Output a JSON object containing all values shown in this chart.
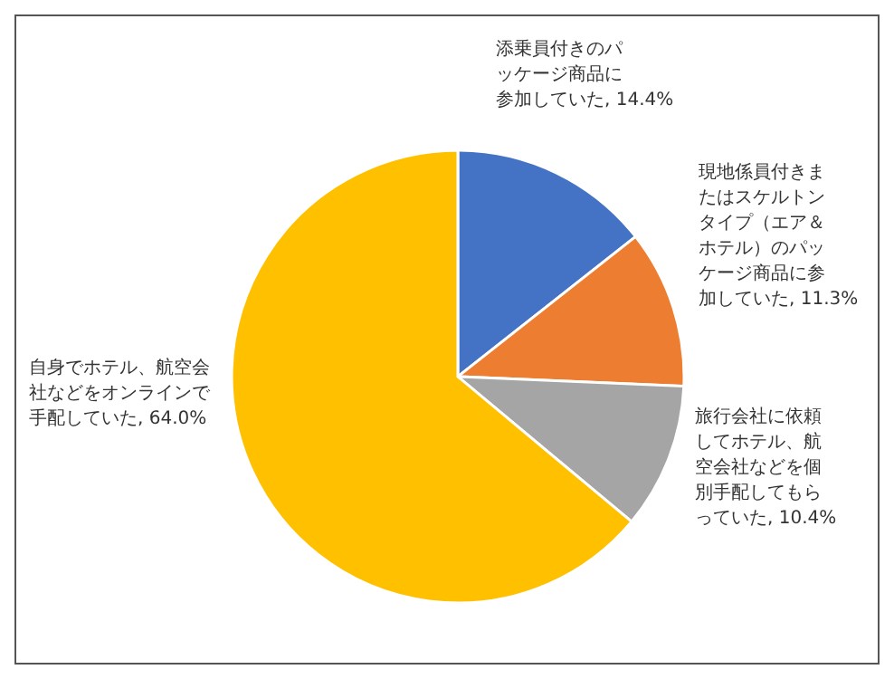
{
  "chart_data": {
    "type": "pie",
    "categories": [
      "添乗員付きのパッケージ商品に参加していた",
      "現地係員付きまたはスケルトンタイプ（エア＆ホテル）のパッケージ商品に参加していた",
      "旅行会社に依頼してホテル、航空会社などを個別手配してもらっていた",
      "自身でホテル、航空会社などをオンラインで手配していた"
    ],
    "values": [
      14.4,
      11.3,
      10.4,
      64.0
    ],
    "value_labels": [
      "14.4%",
      "11.3%",
      "10.4%",
      "64.0%"
    ],
    "colors": [
      "#4472c4",
      "#ed7d31",
      "#a5a5a5",
      "#ffc000"
    ],
    "legend": false
  }
}
